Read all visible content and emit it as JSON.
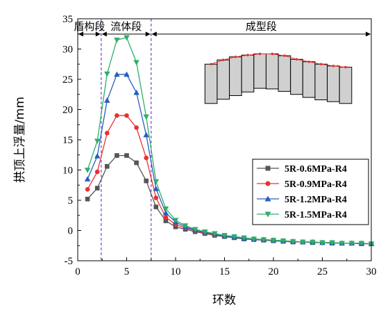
{
  "chart_data": {
    "type": "line",
    "xlabel": "环数",
    "ylabel": "拱顶上浮量/mm",
    "xlim": [
      0,
      30
    ],
    "ylim": [
      -5,
      35
    ],
    "xticks": [
      "0",
      "5",
      "10",
      "15",
      "20",
      "25",
      "30"
    ],
    "yticks": [
      "-5",
      "0",
      "5",
      "10",
      "15",
      "20",
      "25",
      "30",
      "35"
    ],
    "grid": false,
    "legend_position": "bottom-right",
    "sections": [
      {
        "label": "盾构段",
        "x_start": 0,
        "x_end": 2.4
      },
      {
        "label": "流体段",
        "x_start": 2.4,
        "x_end": 7.5
      },
      {
        "label": "成型段",
        "x_start": 7.5,
        "x_end": 30
      }
    ],
    "boundaries": [
      2.4,
      7.5
    ],
    "x": [
      1,
      2,
      3,
      4,
      5,
      6,
      7,
      8,
      9,
      10,
      11,
      12,
      13,
      14,
      15,
      16,
      17,
      18,
      19,
      20,
      21,
      22,
      23,
      24,
      25,
      26,
      27,
      28,
      29,
      30
    ],
    "series": [
      {
        "name": "5R-0.6MPa-R4",
        "color": "#555555",
        "marker": "square",
        "values": [
          5.2,
          7.0,
          10.6,
          12.4,
          12.4,
          11.2,
          8.2,
          3.9,
          1.6,
          0.6,
          0.2,
          -0.2,
          -0.5,
          -0.8,
          -1.0,
          -1.2,
          -1.4,
          -1.5,
          -1.6,
          -1.7,
          -1.8,
          -1.9,
          -1.9,
          -2.0,
          -2.0,
          -2.1,
          -2.1,
          -2.1,
          -2.2,
          -2.2
        ]
      },
      {
        "name": "5R-0.9MPa-R4",
        "color": "#e8312f",
        "marker": "circle",
        "values": [
          6.8,
          9.7,
          16.1,
          19.0,
          19.0,
          17.0,
          12.0,
          5.4,
          2.2,
          1.0,
          0.4,
          0.0,
          -0.4,
          -0.7,
          -0.9,
          -1.1,
          -1.3,
          -1.4,
          -1.5,
          -1.6,
          -1.7,
          -1.8,
          -1.9,
          -1.9,
          -2.0,
          -2.0,
          -2.1,
          -2.1,
          -2.1,
          -2.2
        ]
      },
      {
        "name": "5R-1.2MPa-R4",
        "color": "#2a5cbf",
        "marker": "triangle-up",
        "values": [
          8.5,
          12.3,
          21.5,
          25.8,
          25.8,
          22.8,
          15.8,
          6.9,
          2.9,
          1.4,
          0.6,
          0.1,
          -0.3,
          -0.6,
          -0.9,
          -1.1,
          -1.3,
          -1.4,
          -1.5,
          -1.6,
          -1.7,
          -1.8,
          -1.9,
          -1.9,
          -2.0,
          -2.0,
          -2.1,
          -2.1,
          -2.1,
          -2.2
        ]
      },
      {
        "name": "5R-1.5MPa-R4",
        "color": "#2fae6a",
        "marker": "triangle-down",
        "values": [
          10.0,
          14.8,
          25.9,
          31.5,
          31.9,
          27.8,
          18.8,
          8.1,
          3.6,
          1.7,
          0.8,
          0.2,
          -0.2,
          -0.5,
          -0.8,
          -1.0,
          -1.2,
          -1.4,
          -1.5,
          -1.6,
          -1.7,
          -1.8,
          -1.9,
          -1.9,
          -2.0,
          -2.0,
          -2.1,
          -2.1,
          -2.1,
          -2.2
        ]
      }
    ],
    "inset": {
      "type": "segmented-lining",
      "top_values": [
        27.5,
        28.2,
        28.7,
        29.0,
        29.2,
        29.2,
        28.9,
        28.3,
        27.9,
        27.5,
        27.2,
        27.0
      ],
      "bottom_values": [
        21.0,
        21.7,
        22.3,
        22.9,
        23.5,
        23.4,
        23.0,
        22.5,
        22.0,
        21.6,
        21.3,
        21.0
      ],
      "fill_color": "#d0d0d0",
      "line_color": "#e8312f"
    }
  }
}
